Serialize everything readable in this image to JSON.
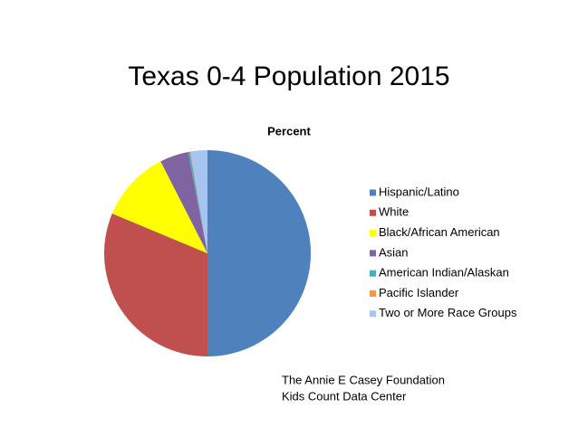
{
  "chart_data": {
    "type": "pie",
    "title": "Texas 0-4 Population 2015",
    "subtitle": "Percent",
    "categories": [
      "Hispanic/Latino",
      "White",
      "Black/African American",
      "Asian",
      "American Indian/Alaskan",
      "Pacific Islander",
      "Two or More Race Groups"
    ],
    "values": [
      50,
      31.3,
      11.2,
      4.5,
      0.3,
      0.1,
      2.6
    ],
    "colors": [
      "#4f81bd",
      "#c0504d",
      "#ffff00",
      "#8064a2",
      "#4bacc6",
      "#f79646",
      "#a7c3ef"
    ],
    "legend": "right",
    "source": [
      "The Annie E Casey Foundation",
      "Kids Count Data Center"
    ]
  }
}
